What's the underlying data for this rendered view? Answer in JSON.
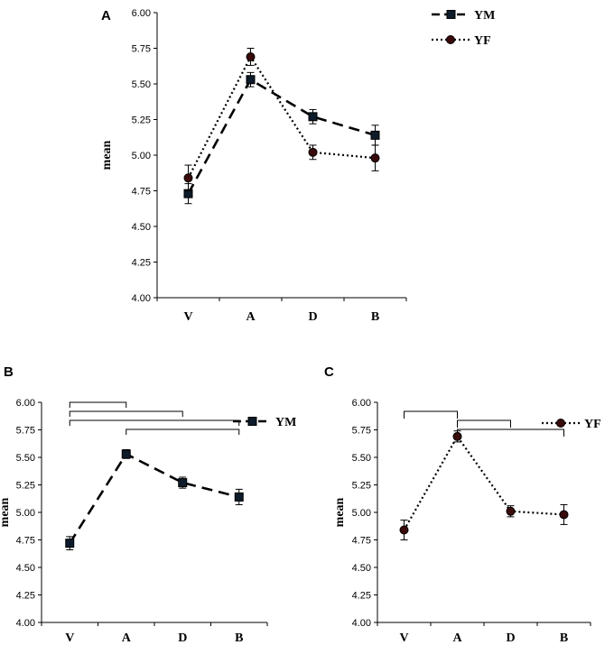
{
  "chart_data": [
    {
      "panel": "A",
      "type": "line",
      "ylabel": "mean",
      "categories": [
        "V",
        "A",
        "D",
        "B"
      ],
      "ylim": [
        4.0,
        6.0
      ],
      "yticks": [
        "4.00",
        "4.25",
        "4.50",
        "4.75",
        "5.00",
        "5.25",
        "5.50",
        "5.75",
        "6.00"
      ],
      "legend_position": "top-right",
      "series": [
        {
          "name": "YM",
          "values": [
            4.73,
            5.53,
            5.27,
            5.14
          ],
          "errors": [
            0.07,
            0.05,
            0.05,
            0.07
          ],
          "line": "dashed",
          "marker": "square",
          "color": "#0d1b2a"
        },
        {
          "name": "YF",
          "values": [
            4.84,
            5.69,
            5.02,
            4.98
          ],
          "errors": [
            0.09,
            0.06,
            0.05,
            0.09
          ],
          "line": "dotted",
          "marker": "circle",
          "color": "#3a0a0a"
        }
      ]
    },
    {
      "panel": "B",
      "type": "line",
      "ylabel": "mean",
      "categories": [
        "V",
        "A",
        "D",
        "B"
      ],
      "ylim": [
        4.0,
        6.0
      ],
      "yticks": [
        "4.00",
        "4.25",
        "4.50",
        "4.75",
        "5.00",
        "5.25",
        "5.50",
        "5.75",
        "6.00"
      ],
      "legend_position": "right",
      "significance_brackets": [
        [
          0,
          1
        ],
        [
          0,
          2
        ],
        [
          0,
          3
        ],
        [
          1,
          3
        ]
      ],
      "series": [
        {
          "name": "YM",
          "values": [
            4.72,
            5.53,
            5.27,
            5.14
          ],
          "errors": [
            0.06,
            0.04,
            0.05,
            0.07
          ],
          "line": "dashed",
          "marker": "square",
          "color": "#0d1b2a"
        }
      ]
    },
    {
      "panel": "C",
      "type": "line",
      "ylabel": "mean",
      "categories": [
        "V",
        "A",
        "D",
        "B"
      ],
      "ylim": [
        4.0,
        6.0
      ],
      "yticks": [
        "4.00",
        "4.25",
        "4.50",
        "4.75",
        "5.00",
        "5.25",
        "5.50",
        "5.75",
        "6.00"
      ],
      "legend_position": "right",
      "significance_brackets": [
        [
          0,
          1
        ],
        [
          1,
          2
        ],
        [
          1,
          3
        ]
      ],
      "series": [
        {
          "name": "YF",
          "values": [
            4.84,
            5.69,
            5.01,
            4.98
          ],
          "errors": [
            0.09,
            0.05,
            0.05,
            0.09
          ],
          "line": "dotted",
          "marker": "circle",
          "color": "#3a0a0a"
        }
      ]
    }
  ]
}
